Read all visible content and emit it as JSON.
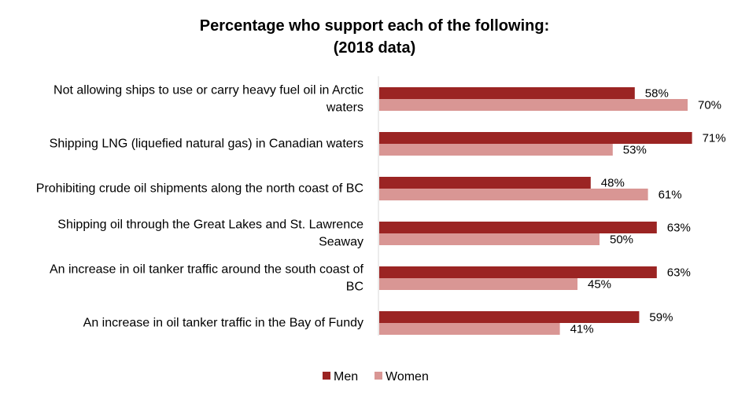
{
  "chart_data": {
    "type": "bar",
    "orientation": "horizontal",
    "title": [
      "Percentage who support each of the following:",
      "(2018 data)"
    ],
    "categories": [
      [
        "Not allowing ships to use or carry heavy fuel oil in Arctic",
        "waters"
      ],
      [
        "Shipping LNG (liquefied natural gas) in Canadian waters"
      ],
      [
        "Prohibiting crude oil shipments along the north coast of BC"
      ],
      [
        "Shipping oil through the Great Lakes and St. Lawrence",
        "Seaway"
      ],
      [
        "An increase in oil tanker traffic around the south coast of",
        "BC"
      ],
      [
        "An increase in oil tanker traffic in the Bay of Fundy"
      ]
    ],
    "series": [
      {
        "name": "Men",
        "color": "#9b2423",
        "values": [
          58,
          71,
          48,
          63,
          63,
          59
        ],
        "labels": [
          "58%",
          "71%",
          "48%",
          "63%",
          "63%",
          "59%"
        ]
      },
      {
        "name": "Women",
        "color": "#d99694",
        "values": [
          70,
          53,
          61,
          50,
          45,
          41
        ],
        "labels": [
          "70%",
          "53%",
          "61%",
          "50%",
          "45%",
          "41%"
        ]
      }
    ],
    "xlim": [
      0,
      100
    ],
    "grid": false,
    "legend_position": "bottom"
  }
}
